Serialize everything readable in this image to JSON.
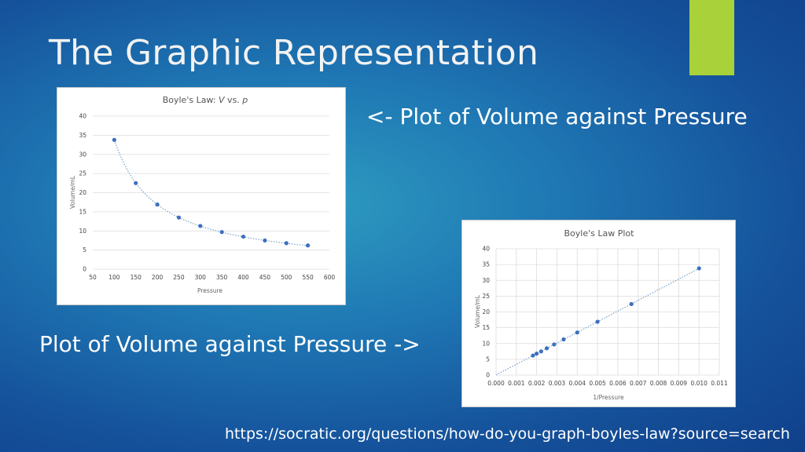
{
  "slide": {
    "title": "The Graphic Representation",
    "caption_right": "<- Plot of Volume against Pressure",
    "caption_left": "Plot of Volume against Pressure ->",
    "source": "https://socratic.org/questions/how-do-you-graph-boyles-law?source=search",
    "accent_color": "#a8d13a"
  },
  "chart_data": [
    {
      "type": "scatter",
      "title_prefix": "Boyle's Law: ",
      "title_v": "V",
      "title_mid": " vs. ",
      "title_p": "p",
      "xlabel": "Pressure",
      "ylabel": "Volume/mL",
      "xlim": [
        50,
        600
      ],
      "ylim": [
        0,
        40
      ],
      "xticks": [
        50,
        100,
        150,
        200,
        250,
        300,
        350,
        400,
        450,
        500,
        550,
        600
      ],
      "xtick_labels": [
        "50",
        "100",
        "150",
        "200",
        "250",
        "300",
        "350",
        "400",
        "450",
        "500",
        "550",
        "600"
      ],
      "yticks": [
        0,
        5,
        10,
        15,
        20,
        25,
        30,
        35,
        40
      ],
      "ytick_labels": [
        "0",
        "5",
        "10",
        "15",
        "20",
        "25",
        "30",
        "35",
        "40"
      ],
      "grid": "horizontal",
      "trendline": "power",
      "x": [
        100,
        150,
        200,
        250,
        300,
        350,
        400,
        450,
        500,
        550
      ],
      "y": [
        33.8,
        22.5,
        16.9,
        13.5,
        11.3,
        9.7,
        8.5,
        7.5,
        6.8,
        6.2
      ]
    },
    {
      "type": "scatter",
      "title": "Boyle's Law Plot",
      "xlabel": "1/Pressure",
      "ylabel": "Volume/mL",
      "xlim": [
        0,
        0.011
      ],
      "ylim": [
        0,
        40
      ],
      "xticks": [
        0,
        0.001,
        0.002,
        0.003,
        0.004,
        0.005,
        0.006,
        0.007,
        0.008,
        0.009,
        0.01,
        0.011
      ],
      "xtick_labels": [
        "0.000",
        "0.001",
        "0.002",
        "0.003",
        "0.004",
        "0.005",
        "0.006",
        "0.007",
        "0.008",
        "0.009",
        "0.010",
        "0.011"
      ],
      "yticks": [
        0,
        5,
        10,
        15,
        20,
        25,
        30,
        35,
        40
      ],
      "ytick_labels": [
        "0",
        "5",
        "10",
        "15",
        "20",
        "25",
        "30",
        "35",
        "40"
      ],
      "grid": "both",
      "trendline": "linear",
      "x": [
        0.01,
        0.00667,
        0.005,
        0.004,
        0.00333,
        0.00286,
        0.0025,
        0.00222,
        0.002,
        0.00182
      ],
      "y": [
        33.8,
        22.5,
        16.9,
        13.5,
        11.3,
        9.7,
        8.5,
        7.5,
        6.8,
        6.2
      ]
    }
  ]
}
